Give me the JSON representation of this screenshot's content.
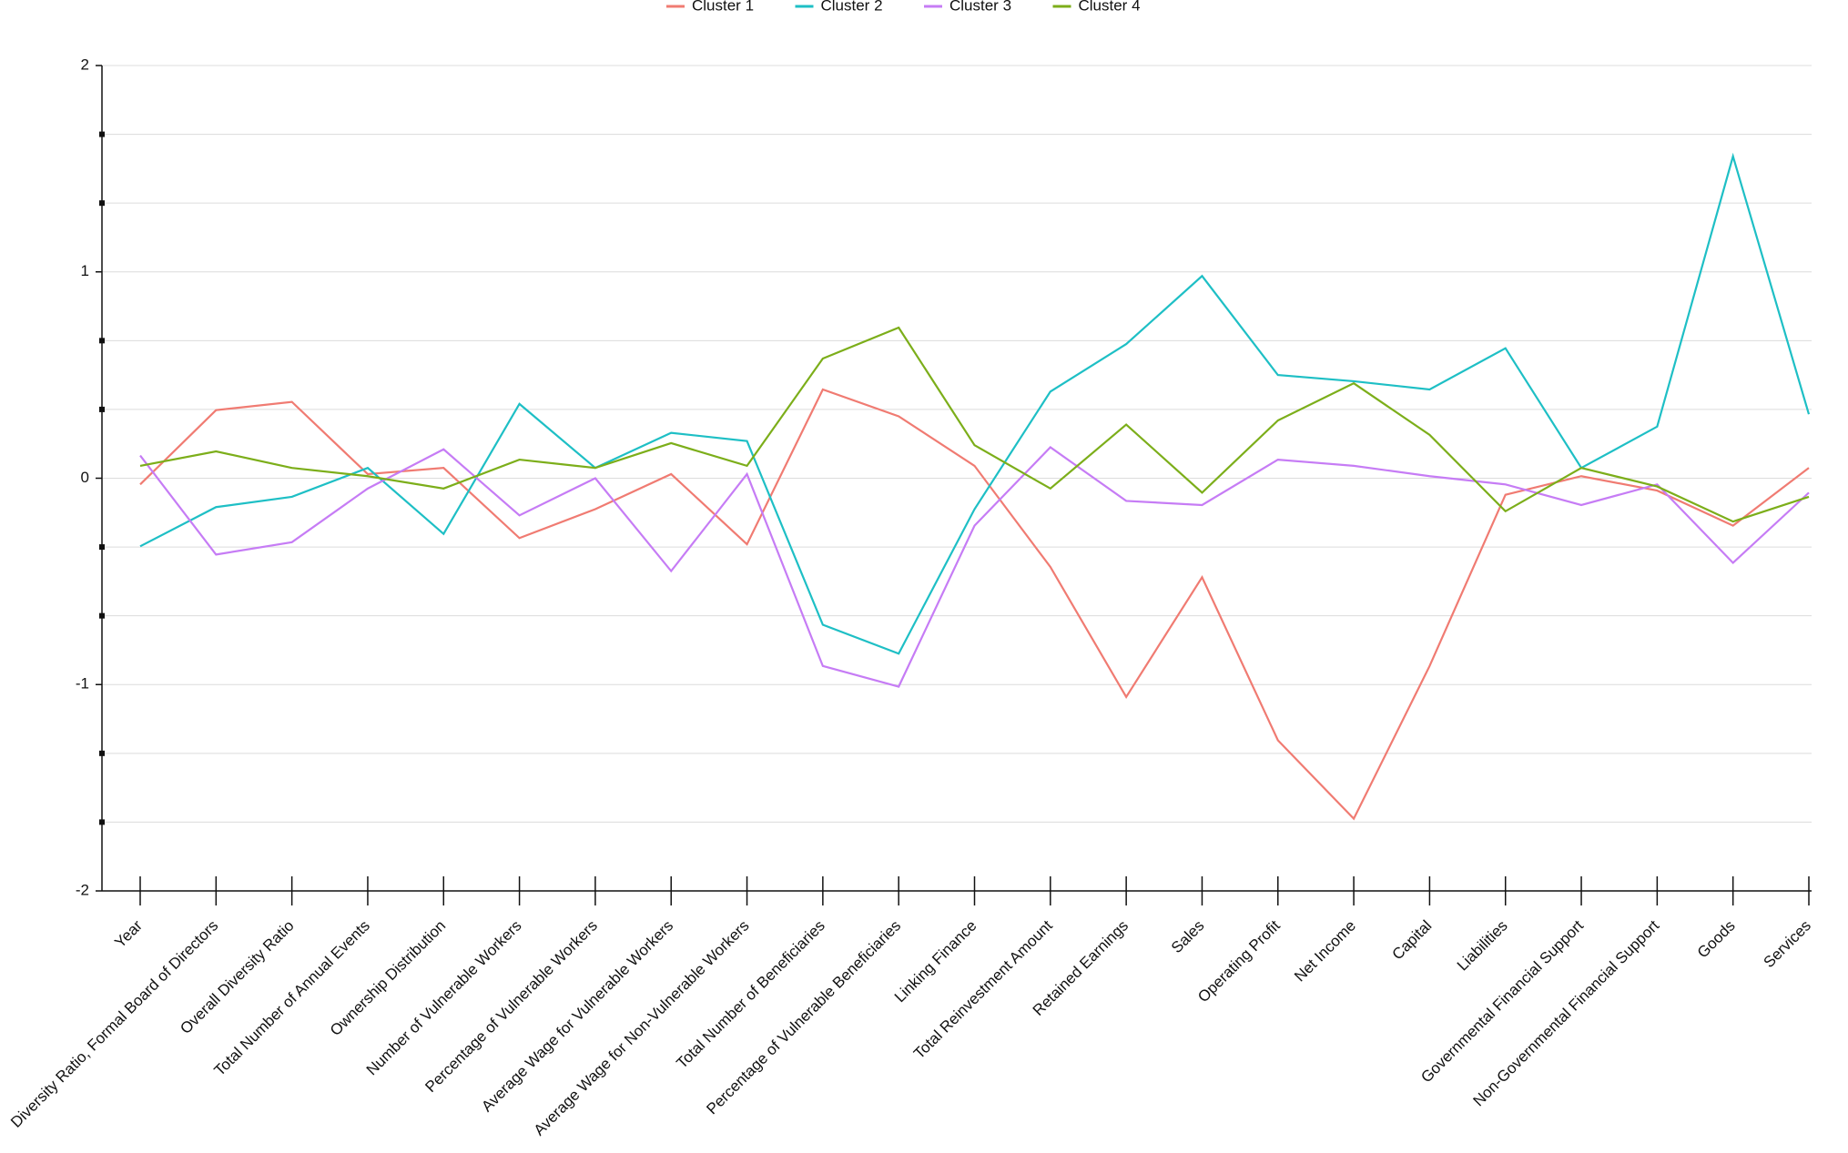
{
  "chart_data": {
    "type": "line",
    "categories": [
      "Year",
      "Diversity Ratio, Formal Board of Directors",
      "Overall Diversity Ratio",
      "Total Number of Annual Events",
      "Ownership Distribution",
      "Number of Vulnerable Workers",
      "Percentage of Vulnerable Workers",
      "Average Wage for Vulnerable Workers",
      "Average Wage for Non-Vulnerable Workers",
      "Total Number of Beneficiaries",
      "Percentage of Vulnerable Beneficiaries",
      "Linking Finance",
      "Total Reinvestment Amount",
      "Retained Earnings",
      "Sales",
      "Operating Profit",
      "Net Income",
      "Capital",
      "Liabilities",
      "Governmental Financial Support",
      "Non-Governmental Financial Support",
      "Goods",
      "Services"
    ],
    "series": [
      {
        "name": "Cluster 1",
        "color": "#f07b72",
        "values": [
          -0.03,
          0.33,
          0.37,
          0.02,
          0.05,
          -0.29,
          -0.15,
          0.02,
          -0.32,
          0.43,
          0.3,
          0.06,
          -0.43,
          -1.06,
          -0.48,
          -1.27,
          -1.65,
          -0.91,
          -0.08,
          0.01,
          -0.06,
          -0.23,
          0.05
        ]
      },
      {
        "name": "Cluster 2",
        "color": "#1ebfc5",
        "values": [
          -0.33,
          -0.14,
          -0.09,
          0.05,
          -0.27,
          0.36,
          0.05,
          0.22,
          0.18,
          -0.71,
          -0.85,
          -0.15,
          0.42,
          0.65,
          0.98,
          0.5,
          0.47,
          0.43,
          0.63,
          0.05,
          0.25,
          1.56,
          0.31
        ]
      },
      {
        "name": "Cluster 3",
        "color": "#c67cf5",
        "values": [
          0.11,
          -0.37,
          -0.31,
          -0.05,
          0.14,
          -0.18,
          0.0,
          -0.45,
          0.02,
          -0.91,
          -1.01,
          -0.23,
          0.15,
          -0.11,
          -0.13,
          0.09,
          0.06,
          0.01,
          -0.03,
          -0.13,
          -0.03,
          -0.41,
          -0.07
        ]
      },
      {
        "name": "Cluster 4",
        "color": "#7cae1a",
        "values": [
          0.06,
          0.13,
          0.05,
          0.01,
          -0.05,
          0.09,
          0.05,
          0.17,
          0.06,
          0.58,
          0.73,
          0.16,
          -0.05,
          0.26,
          -0.07,
          0.28,
          0.46,
          0.21,
          -0.16,
          0.05,
          -0.04,
          -0.21,
          -0.09
        ]
      }
    ],
    "ylim": [
      -2,
      2
    ],
    "yticks": [
      -2,
      -1,
      0,
      1,
      2
    ],
    "y_minor_divisions": 3,
    "grid": true,
    "legend": "top"
  }
}
